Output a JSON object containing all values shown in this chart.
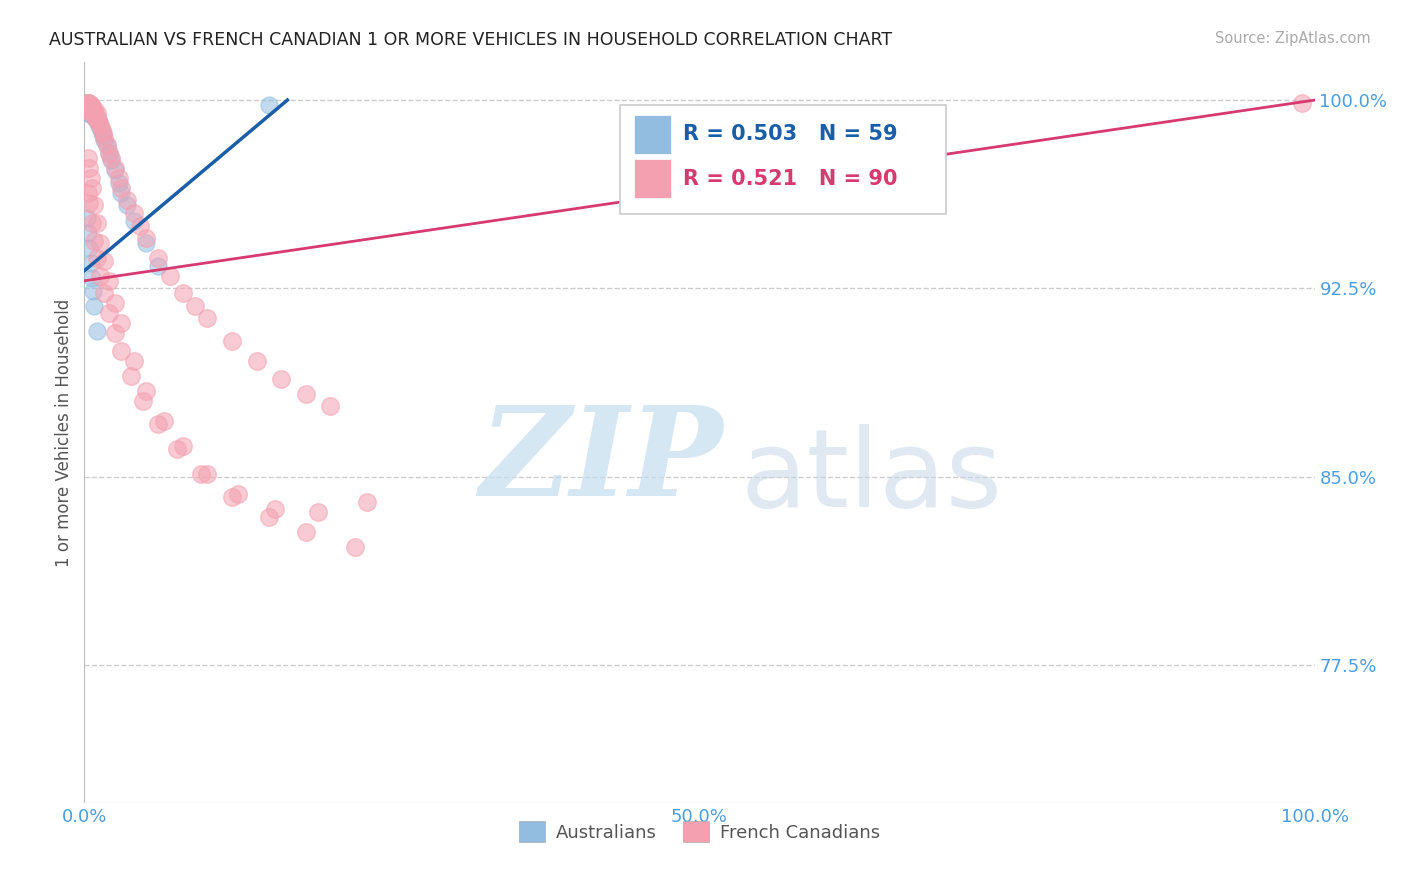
{
  "title": "AUSTRALIAN VS FRENCH CANADIAN 1 OR MORE VEHICLES IN HOUSEHOLD CORRELATION CHART",
  "source": "Source: ZipAtlas.com",
  "ylabel": "1 or more Vehicles in Household",
  "xlim": [
    0.0,
    1.0
  ],
  "ylim": [
    0.72,
    1.015
  ],
  "yticks": [
    0.775,
    0.85,
    0.925,
    1.0
  ],
  "ytick_labels": [
    "77.5%",
    "85.0%",
    "92.5%",
    "100.0%"
  ],
  "xtick_positions": [
    0.0,
    0.5,
    1.0
  ],
  "xtick_labels": [
    "0.0%",
    "50.0%",
    "100.0%"
  ],
  "legend_r_australian": "0.503",
  "legend_n_australian": "59",
  "legend_r_french": "0.521",
  "legend_n_french": "90",
  "australian_color": "#92bde0",
  "french_color": "#f4a0b0",
  "trendline_australian_color": "#1a5ea8",
  "trendline_french_color": "#d63a6e",
  "background_color": "#ffffff",
  "grid_color": "#cccccc",
  "title_color": "#222222",
  "tick_color": "#4d9de0",
  "aus_trend_x0": 0.0,
  "aus_trend_y0": 0.932,
  "aus_trend_x1": 0.165,
  "aus_trend_y1": 1.0,
  "fr_trend_x0": 0.0,
  "fr_trend_y0": 0.928,
  "fr_trend_x1": 1.0,
  "fr_trend_y1": 1.0,
  "australian_x": [
    0.001,
    0.001,
    0.001,
    0.001,
    0.002,
    0.002,
    0.002,
    0.002,
    0.003,
    0.003,
    0.003,
    0.003,
    0.003,
    0.004,
    0.004,
    0.004,
    0.004,
    0.005,
    0.005,
    0.005,
    0.005,
    0.006,
    0.006,
    0.006,
    0.007,
    0.007,
    0.007,
    0.008,
    0.008,
    0.009,
    0.009,
    0.01,
    0.01,
    0.011,
    0.011,
    0.012,
    0.013,
    0.014,
    0.015,
    0.016,
    0.018,
    0.02,
    0.022,
    0.025,
    0.028,
    0.03,
    0.035,
    0.04,
    0.05,
    0.06,
    0.002,
    0.003,
    0.004,
    0.005,
    0.006,
    0.007,
    0.008,
    0.01,
    0.15
  ],
  "australian_y": [
    0.998,
    0.997,
    0.996,
    0.995,
    0.999,
    0.998,
    0.997,
    0.996,
    0.999,
    0.998,
    0.997,
    0.996,
    0.995,
    0.999,
    0.998,
    0.997,
    0.996,
    0.998,
    0.997,
    0.996,
    0.995,
    0.997,
    0.996,
    0.995,
    0.996,
    0.995,
    0.994,
    0.995,
    0.994,
    0.994,
    0.993,
    0.993,
    0.992,
    0.992,
    0.991,
    0.99,
    0.989,
    0.987,
    0.986,
    0.984,
    0.982,
    0.979,
    0.976,
    0.972,
    0.967,
    0.963,
    0.958,
    0.952,
    0.943,
    0.934,
    0.953,
    0.947,
    0.941,
    0.935,
    0.929,
    0.924,
    0.918,
    0.908,
    0.998
  ],
  "french_x": [
    0.001,
    0.001,
    0.002,
    0.002,
    0.002,
    0.003,
    0.003,
    0.003,
    0.004,
    0.004,
    0.004,
    0.005,
    0.005,
    0.005,
    0.006,
    0.006,
    0.007,
    0.007,
    0.008,
    0.008,
    0.009,
    0.009,
    0.01,
    0.01,
    0.011,
    0.012,
    0.013,
    0.014,
    0.015,
    0.016,
    0.018,
    0.02,
    0.022,
    0.025,
    0.028,
    0.03,
    0.035,
    0.04,
    0.045,
    0.05,
    0.06,
    0.07,
    0.08,
    0.09,
    0.1,
    0.12,
    0.14,
    0.16,
    0.18,
    0.2,
    0.003,
    0.004,
    0.005,
    0.006,
    0.008,
    0.01,
    0.013,
    0.016,
    0.02,
    0.025,
    0.03,
    0.04,
    0.05,
    0.065,
    0.08,
    0.1,
    0.125,
    0.155,
    0.19,
    0.23,
    0.003,
    0.004,
    0.006,
    0.008,
    0.01,
    0.013,
    0.016,
    0.02,
    0.025,
    0.03,
    0.038,
    0.048,
    0.06,
    0.075,
    0.095,
    0.12,
    0.15,
    0.18,
    0.22,
    0.99
  ],
  "french_y": [
    0.997,
    0.996,
    0.999,
    0.998,
    0.997,
    0.999,
    0.998,
    0.997,
    0.999,
    0.998,
    0.996,
    0.998,
    0.997,
    0.996,
    0.997,
    0.996,
    0.997,
    0.995,
    0.996,
    0.994,
    0.995,
    0.993,
    0.995,
    0.993,
    0.992,
    0.991,
    0.99,
    0.988,
    0.987,
    0.985,
    0.982,
    0.979,
    0.977,
    0.973,
    0.969,
    0.965,
    0.96,
    0.955,
    0.95,
    0.945,
    0.937,
    0.93,
    0.923,
    0.918,
    0.913,
    0.904,
    0.896,
    0.889,
    0.883,
    0.878,
    0.977,
    0.973,
    0.969,
    0.965,
    0.958,
    0.951,
    0.943,
    0.936,
    0.928,
    0.919,
    0.911,
    0.896,
    0.884,
    0.872,
    0.862,
    0.851,
    0.843,
    0.837,
    0.836,
    0.84,
    0.963,
    0.959,
    0.951,
    0.944,
    0.937,
    0.93,
    0.923,
    0.915,
    0.907,
    0.9,
    0.89,
    0.88,
    0.871,
    0.861,
    0.851,
    0.842,
    0.834,
    0.828,
    0.822,
    0.999
  ]
}
